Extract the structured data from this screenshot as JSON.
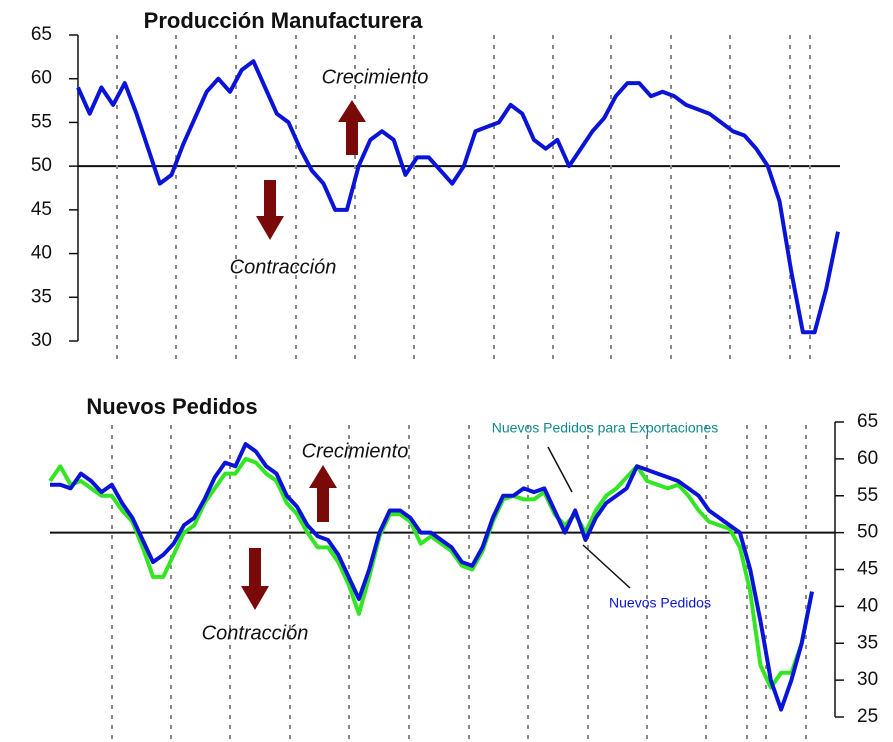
{
  "chart_data": [
    {
      "type": "line",
      "title": "Producción Manufacturera",
      "annotations": [
        "Crecimiento",
        "Contracción"
      ],
      "reference_line": 50,
      "ylim": [
        30,
        65
      ],
      "yticks": [
        30,
        35,
        40,
        45,
        50,
        55,
        60,
        65
      ],
      "series": [
        {
          "color": "#0a14d8",
          "values": [
            59,
            56,
            59,
            57,
            59.5,
            56,
            52,
            48,
            49,
            52.5,
            55.5,
            58.5,
            60,
            58.5,
            61,
            62,
            59,
            56,
            55,
            52,
            49.5,
            48,
            45,
            45,
            50,
            53,
            54,
            53,
            49,
            51,
            51,
            49.5,
            48,
            50,
            54,
            54.5,
            55,
            57,
            56,
            53,
            52,
            53,
            50,
            52,
            54,
            55.5,
            58,
            59.5,
            59.5,
            58,
            58.5,
            58,
            57,
            56.5,
            56,
            55,
            54,
            53.5,
            52,
            50,
            46,
            38,
            31,
            31,
            36,
            42.5
          ]
        }
      ]
    },
    {
      "type": "line",
      "title": "Nuevos Pedidos",
      "annotations": [
        "Crecimiento",
        "Contracción"
      ],
      "reference_line": 50,
      "ylim": [
        25,
        65
      ],
      "yticks": [
        25,
        30,
        35,
        40,
        45,
        50,
        55,
        60,
        65
      ],
      "series": [
        {
          "name": "Nuevos Pedidos para Exportaciones",
          "color": "#33e622",
          "values": [
            57,
            59,
            56.5,
            57,
            56,
            55,
            55,
            53,
            51.5,
            48,
            44,
            44,
            47,
            50,
            51,
            54,
            56,
            58,
            58,
            60,
            59.5,
            58,
            57,
            54,
            52.5,
            50,
            48,
            48,
            46,
            43,
            39,
            44,
            49.5,
            52.5,
            52.5,
            51.5,
            48.5,
            49.5,
            48.5,
            47.5,
            45.5,
            45,
            47.5,
            51.5,
            54.5,
            55,
            54.5,
            54.5,
            55.5,
            52.5,
            51,
            52.5,
            50,
            53,
            55,
            56,
            57.5,
            59,
            57,
            56.5,
            56,
            56.5,
            55,
            53,
            51.5,
            51,
            50.5,
            48,
            42,
            32,
            29,
            31,
            31,
            35,
            42
          ]
        },
        {
          "name": "Nuevos Pedidos",
          "color": "#0a14d8",
          "values": [
            56.5,
            56.5,
            56,
            58,
            57,
            55.5,
            56.5,
            54,
            52,
            49,
            46,
            47,
            48.5,
            51,
            52,
            54.5,
            57.5,
            59.5,
            59,
            62,
            61,
            59,
            58,
            55,
            53.5,
            51,
            49.5,
            49,
            47,
            44,
            41,
            45,
            50,
            53,
            53,
            52,
            50,
            50,
            49,
            48,
            46,
            45.5,
            48,
            52,
            55,
            55,
            56,
            55.5,
            56,
            53,
            50,
            53,
            49,
            52,
            54,
            55,
            56,
            59,
            58.5,
            58,
            57.5,
            57,
            56,
            55,
            53,
            52,
            51,
            50,
            45,
            38,
            30,
            26,
            30,
            35,
            42
          ]
        }
      ]
    }
  ]
}
